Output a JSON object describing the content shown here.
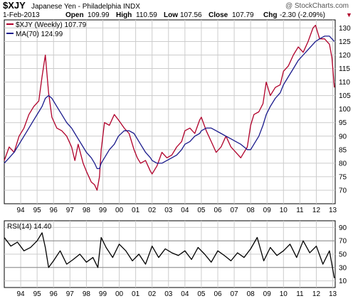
{
  "header": {
    "symbol": "$XJY",
    "name": "Japanese Yen - Philadelphia INDX",
    "watermark": "@ StockCharts.com",
    "date": "1-Feb-2013",
    "open_label": "Open",
    "open": "109.99",
    "high_label": "High",
    "high": "110.59",
    "low_label": "Low",
    "low": "107.56",
    "close_label": "Close",
    "close": "107.79",
    "chg_label": "Chg",
    "chg": "-2.30 (-2.09%)",
    "chg_arrow": "▼"
  },
  "colors": {
    "price": "#b0002a",
    "ma": "#1a1a8c",
    "rsi": "#000000",
    "grid": "#cccccc",
    "ref": "#8c8c8c"
  },
  "chart_data": [
    {
      "type": "line",
      "legend": [
        {
          "text": "$XJY (Weekly) 107.79",
          "color": "#b0002a"
        },
        {
          "text": "MA(70) 124.99",
          "color": "#1a1a8c"
        }
      ],
      "x": [
        1993.0,
        1993.3,
        1993.6,
        1993.9,
        1994.2,
        1994.5,
        1994.8,
        1995.1,
        1995.3,
        1995.5,
        1995.7,
        1995.9,
        1996.2,
        1996.5,
        1996.8,
        1997.1,
        1997.3,
        1997.5,
        1997.8,
        1998.0,
        1998.3,
        1998.5,
        1998.65,
        1998.8,
        1998.9,
        1999.1,
        1999.4,
        1999.7,
        1999.95,
        2000.3,
        2000.6,
        2000.9,
        2001.1,
        2001.3,
        2001.6,
        2001.9,
        2002.0,
        2002.3,
        2002.6,
        2002.9,
        2003.2,
        2003.5,
        2003.8,
        2004.0,
        2004.3,
        2004.6,
        2004.9,
        2005.0,
        2005.3,
        2005.6,
        2005.9,
        2006.2,
        2006.5,
        2006.8,
        2007.1,
        2007.4,
        2007.6,
        2007.8,
        2008.0,
        2008.2,
        2008.5,
        2008.75,
        2008.95,
        2009.2,
        2009.5,
        2009.8,
        2010.0,
        2010.3,
        2010.6,
        2010.9,
        2011.2,
        2011.5,
        2011.8,
        2011.95,
        2012.2,
        2012.5,
        2012.8,
        2012.95,
        2013.1
      ],
      "series": [
        {
          "name": "$XJY (Weekly)",
          "values": [
            81,
            86,
            84,
            90,
            93,
            98,
            101,
            103,
            112,
            120,
            106,
            97,
            93,
            92,
            90,
            86,
            81,
            87,
            80,
            77,
            73,
            72,
            70,
            75,
            85,
            95,
            94,
            98,
            96,
            93,
            91,
            85,
            82,
            80,
            81,
            77,
            76,
            79,
            84,
            82,
            83,
            86,
            88,
            92,
            93,
            91,
            96,
            97,
            92,
            88,
            84,
            86,
            90,
            86,
            84,
            82,
            84,
            86,
            94,
            98,
            99,
            102,
            110,
            105,
            108,
            109,
            114,
            116,
            120,
            123,
            121,
            125,
            130,
            131,
            126,
            126,
            124,
            119,
            108
          ]
        },
        {
          "name": "MA(70)",
          "values": [
            80,
            82,
            84,
            87,
            90,
            93,
            96,
            99,
            101,
            104,
            105,
            104,
            101,
            98,
            95,
            93,
            91,
            89,
            86,
            84,
            82,
            80,
            78,
            78,
            80,
            82,
            85,
            87,
            90,
            92,
            92,
            91,
            89,
            87,
            84,
            82,
            81,
            80,
            80,
            81,
            82,
            83,
            85,
            87,
            88,
            90,
            91,
            92,
            93,
            93,
            92,
            91,
            90,
            89,
            88,
            87,
            86,
            85,
            85,
            87,
            90,
            94,
            98,
            101,
            104,
            106,
            109,
            112,
            115,
            118,
            120,
            122,
            124,
            125,
            126,
            127,
            127,
            126,
            125
          ]
        }
      ],
      "ylim": [
        65,
        133
      ],
      "yticks": [
        70,
        75,
        80,
        85,
        90,
        95,
        100,
        105,
        110,
        115,
        120,
        125,
        130
      ],
      "xtick_labels": [
        "94",
        "95",
        "96",
        "97",
        "98",
        "99",
        "00",
        "01",
        "02",
        "03",
        "04",
        "05",
        "06",
        "07",
        "08",
        "09",
        "10",
        "11",
        "12",
        "13"
      ],
      "grid": true
    },
    {
      "type": "line",
      "legend": [
        {
          "text": "RSI(14) 14.40",
          "color": "#000000"
        }
      ],
      "x": [
        1993.0,
        1993.4,
        1993.8,
        1994.2,
        1994.6,
        1995.0,
        1995.3,
        1995.5,
        1995.7,
        1996.0,
        1996.4,
        1996.8,
        1997.2,
        1997.6,
        1998.0,
        1998.4,
        1998.7,
        1998.9,
        1999.2,
        1999.6,
        2000.0,
        2000.4,
        2000.8,
        2001.2,
        2001.6,
        2002.0,
        2002.4,
        2002.8,
        2003.2,
        2003.6,
        2004.0,
        2004.4,
        2004.8,
        2005.2,
        2005.6,
        2006.0,
        2006.4,
        2006.8,
        2007.2,
        2007.6,
        2008.0,
        2008.4,
        2008.8,
        2009.2,
        2009.6,
        2010.0,
        2010.4,
        2010.8,
        2011.2,
        2011.6,
        2012.0,
        2012.4,
        2012.8,
        2013.1
      ],
      "series": [
        {
          "name": "RSI(14)",
          "values": [
            75,
            62,
            68,
            55,
            60,
            70,
            82,
            60,
            30,
            40,
            55,
            35,
            42,
            50,
            38,
            45,
            30,
            75,
            60,
            45,
            65,
            55,
            40,
            50,
            35,
            62,
            45,
            58,
            52,
            48,
            55,
            42,
            60,
            50,
            38,
            55,
            48,
            40,
            52,
            45,
            58,
            75,
            40,
            60,
            48,
            55,
            65,
            45,
            70,
            52,
            62,
            35,
            55,
            14
          ]
        }
      ],
      "ylim": [
        0,
        100
      ],
      "yticks": [
        10,
        30,
        50,
        70,
        90
      ],
      "ref_lines": [
        30,
        70
      ],
      "xtick_labels": [
        "94",
        "95",
        "96",
        "97",
        "98",
        "99",
        "00",
        "01",
        "02",
        "03",
        "04",
        "05",
        "06",
        "07",
        "08",
        "09",
        "10",
        "11",
        "12",
        "13"
      ],
      "grid": true
    }
  ]
}
